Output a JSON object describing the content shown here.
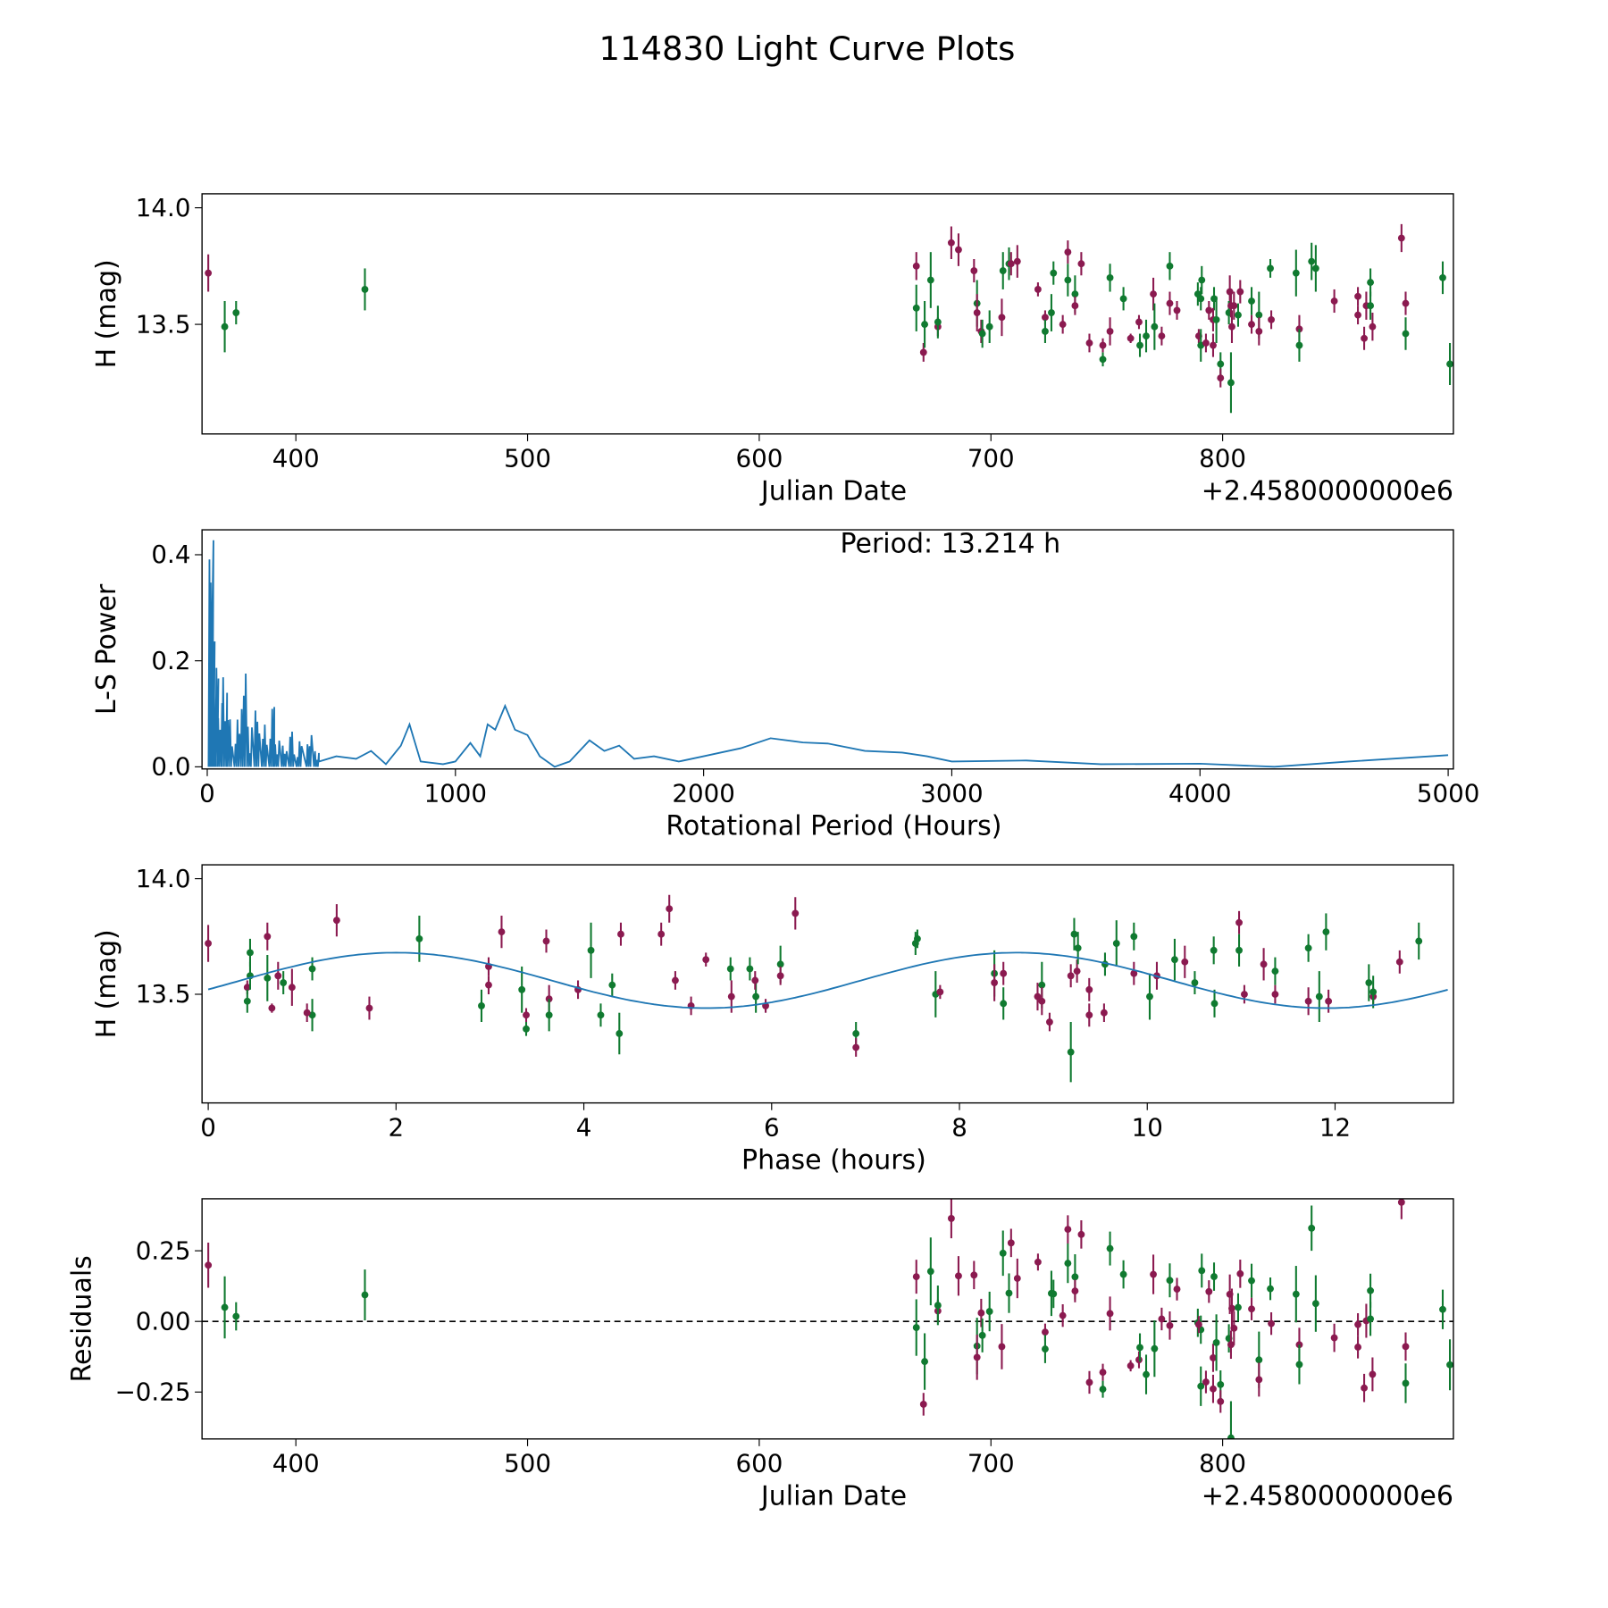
{
  "title": "114830 Light Curve Plots",
  "colors": {
    "band_a": "#8b1a50",
    "band_b": "#107a30",
    "line": "#1f77b4"
  },
  "chart_data": [
    {
      "type": "scatter",
      "name": "light-curve",
      "xlabel": "Julian Date",
      "ylabel": "H (mag)",
      "offset_label": "+2.4580000000e6",
      "xlim": [
        359.5,
        899.6
      ],
      "ylim": [
        13.03,
        14.06
      ],
      "xticks": [
        400,
        500,
        600,
        700,
        800
      ],
      "yticks": [
        13.5,
        14.0
      ],
      "xtick_labels": [
        "400",
        "500",
        "600",
        "700",
        "800"
      ],
      "ytick_labels": [
        "13.5",
        "14.0"
      ],
      "points_format": [
        "jd_offset",
        "H",
        "err",
        "band"
      ],
      "points": [
        [
          362.2,
          13.72,
          0.08,
          "a"
        ],
        [
          369.3,
          13.49,
          0.11,
          "b"
        ],
        [
          374.2,
          13.55,
          0.05,
          "b"
        ],
        [
          429.8,
          13.65,
          0.09,
          "b"
        ],
        [
          667.8,
          13.57,
          0.1,
          "b"
        ],
        [
          667.8,
          13.75,
          0.06,
          "a"
        ],
        [
          670.9,
          13.38,
          0.04,
          "a"
        ],
        [
          671.4,
          13.5,
          0.1,
          "b"
        ],
        [
          674.0,
          13.69,
          0.12,
          "b"
        ],
        [
          677.1,
          13.49,
          0.04,
          "a"
        ],
        [
          677.1,
          13.51,
          0.07,
          "b"
        ],
        [
          682.9,
          13.85,
          0.07,
          "a"
        ],
        [
          686.0,
          13.82,
          0.07,
          "a"
        ],
        [
          692.7,
          13.73,
          0.05,
          "a"
        ],
        [
          694.0,
          13.59,
          0.1,
          "b"
        ],
        [
          694.0,
          13.55,
          0.08,
          "a"
        ],
        [
          695.8,
          13.47,
          0.05,
          "a"
        ],
        [
          696.3,
          13.46,
          0.06,
          "b"
        ],
        [
          699.4,
          13.49,
          0.07,
          "b"
        ],
        [
          704.7,
          13.53,
          0.08,
          "a"
        ],
        [
          705.2,
          13.73,
          0.08,
          "b"
        ],
        [
          707.8,
          13.76,
          0.07,
          "b"
        ],
        [
          708.7,
          13.76,
          0.05,
          "a"
        ],
        [
          711.4,
          13.77,
          0.07,
          "a"
        ],
        [
          720.3,
          13.65,
          0.03,
          "a"
        ],
        [
          723.4,
          13.53,
          0.03,
          "a"
        ],
        [
          723.4,
          13.47,
          0.05,
          "b"
        ],
        [
          726.1,
          13.55,
          0.08,
          "b"
        ],
        [
          727.0,
          13.72,
          0.05,
          "b"
        ],
        [
          731.0,
          13.5,
          0.04,
          "a"
        ],
        [
          733.2,
          13.81,
          0.05,
          "a"
        ],
        [
          733.2,
          13.69,
          0.07,
          "b"
        ],
        [
          736.3,
          13.63,
          0.08,
          "b"
        ],
        [
          736.3,
          13.58,
          0.04,
          "a"
        ],
        [
          739.0,
          13.76,
          0.05,
          "a"
        ],
        [
          742.5,
          13.42,
          0.04,
          "a"
        ],
        [
          748.3,
          13.35,
          0.03,
          "b"
        ],
        [
          748.3,
          13.41,
          0.03,
          "a"
        ],
        [
          751.4,
          13.47,
          0.06,
          "a"
        ],
        [
          751.4,
          13.7,
          0.06,
          "b"
        ],
        [
          757.2,
          13.61,
          0.05,
          "b"
        ],
        [
          760.3,
          13.44,
          0.02,
          "a"
        ],
        [
          763.9,
          13.51,
          0.03,
          "a"
        ],
        [
          764.3,
          13.41,
          0.05,
          "b"
        ],
        [
          767.0,
          13.45,
          0.07,
          "b"
        ],
        [
          770.1,
          13.63,
          0.07,
          "a"
        ],
        [
          770.6,
          13.49,
          0.1,
          "b"
        ],
        [
          773.7,
          13.45,
          0.04,
          "a"
        ],
        [
          777.2,
          13.75,
          0.06,
          "b"
        ],
        [
          777.2,
          13.59,
          0.05,
          "a"
        ],
        [
          780.3,
          13.56,
          0.04,
          "a"
        ],
        [
          789.3,
          13.63,
          0.05,
          "b"
        ],
        [
          790.6,
          13.61,
          0.05,
          "b"
        ],
        [
          789.7,
          13.45,
          0.03,
          "a"
        ],
        [
          790.6,
          13.41,
          0.07,
          "b"
        ],
        [
          791.0,
          13.69,
          0.06,
          "b"
        ],
        [
          794.1,
          13.56,
          0.04,
          "a"
        ],
        [
          792.8,
          13.42,
          0.04,
          "a"
        ],
        [
          795.9,
          13.41,
          0.05,
          "a"
        ],
        [
          796.3,
          13.61,
          0.05,
          "b"
        ],
        [
          795.9,
          13.52,
          0.05,
          "a"
        ],
        [
          797.3,
          13.52,
          0.1,
          "b"
        ],
        [
          799.1,
          13.33,
          0.05,
          "b"
        ],
        [
          799.1,
          13.27,
          0.04,
          "a"
        ],
        [
          803.1,
          13.64,
          0.07,
          "a"
        ],
        [
          803.6,
          13.25,
          0.13,
          "b"
        ],
        [
          802.7,
          13.55,
          0.05,
          "b"
        ],
        [
          803.6,
          13.58,
          0.05,
          "a"
        ],
        [
          804.0,
          13.49,
          0.07,
          "a"
        ],
        [
          804.9,
          13.58,
          0.06,
          "a"
        ],
        [
          806.7,
          13.54,
          0.05,
          "b"
        ],
        [
          807.6,
          13.64,
          0.05,
          "a"
        ],
        [
          812.5,
          13.5,
          0.04,
          "a"
        ],
        [
          812.5,
          13.6,
          0.06,
          "b"
        ],
        [
          815.7,
          13.54,
          0.1,
          "b"
        ],
        [
          815.7,
          13.47,
          0.06,
          "a"
        ],
        [
          820.6,
          13.74,
          0.04,
          "b"
        ],
        [
          821.0,
          13.52,
          0.04,
          "a"
        ],
        [
          831.7,
          13.72,
          0.1,
          "b"
        ],
        [
          833.1,
          13.48,
          0.06,
          "a"
        ],
        [
          833.1,
          13.41,
          0.07,
          "b"
        ],
        [
          838.4,
          13.77,
          0.08,
          "b"
        ],
        [
          840.2,
          13.74,
          0.1,
          "b"
        ],
        [
          848.2,
          13.6,
          0.05,
          "a"
        ],
        [
          858.4,
          13.54,
          0.04,
          "a"
        ],
        [
          858.4,
          13.62,
          0.04,
          "a"
        ],
        [
          861.1,
          13.44,
          0.05,
          "a"
        ],
        [
          862.0,
          13.58,
          0.06,
          "a"
        ],
        [
          863.8,
          13.58,
          0.06,
          "b"
        ],
        [
          863.8,
          13.68,
          0.06,
          "b"
        ],
        [
          864.7,
          13.49,
          0.06,
          "a"
        ],
        [
          877.2,
          13.87,
          0.06,
          "a"
        ],
        [
          879.0,
          13.59,
          0.05,
          "a"
        ],
        [
          879.0,
          13.46,
          0.07,
          "b"
        ],
        [
          895.0,
          13.7,
          0.07,
          "b"
        ],
        [
          898.1,
          13.33,
          0.09,
          "b"
        ]
      ]
    },
    {
      "type": "line",
      "name": "periodogram",
      "xlabel": "Rotational Period (Hours)",
      "ylabel": "L-S Power",
      "annotation": "Period: 13.214 h",
      "xlim": [
        -21,
        5021
      ],
      "ylim": [
        -0.004,
        0.447
      ],
      "xticks": [
        0,
        1000,
        2000,
        3000,
        4000,
        5000
      ],
      "yticks": [
        0.0,
        0.2,
        0.4
      ],
      "xtick_labels": [
        "0",
        "1000",
        "2000",
        "3000",
        "4000",
        "5000"
      ],
      "ytick_labels": [
        "0.0",
        "0.2",
        "0.4"
      ],
      "spikes": [
        [
          5,
          0.44
        ],
        [
          10,
          0.35
        ],
        [
          15,
          0.2
        ],
        [
          25,
          0.2
        ],
        [
          40,
          0.12
        ],
        [
          60,
          0.17
        ],
        [
          80,
          0.1
        ],
        [
          110,
          0.09
        ],
        [
          135,
          0.18
        ],
        [
          160,
          0.08
        ],
        [
          190,
          0.11
        ],
        [
          220,
          0.08
        ],
        [
          250,
          0.125
        ],
        [
          270,
          0.05
        ],
        [
          300,
          0.04
        ],
        [
          330,
          0.07
        ],
        [
          360,
          0.05
        ],
        [
          400,
          0.06
        ],
        [
          430,
          0.03
        ]
      ],
      "smooth": [
        [
          450,
          0.01
        ],
        [
          520,
          0.02
        ],
        [
          600,
          0.015
        ],
        [
          660,
          0.03
        ],
        [
          720,
          0.005
        ],
        [
          780,
          0.04
        ],
        [
          815,
          0.08
        ],
        [
          860,
          0.01
        ],
        [
          950,
          0.005
        ],
        [
          1000,
          0.01
        ],
        [
          1060,
          0.045
        ],
        [
          1100,
          0.02
        ],
        [
          1130,
          0.08
        ],
        [
          1160,
          0.07
        ],
        [
          1200,
          0.115
        ],
        [
          1240,
          0.07
        ],
        [
          1290,
          0.06
        ],
        [
          1340,
          0.02
        ],
        [
          1400,
          0.0
        ],
        [
          1460,
          0.01
        ],
        [
          1540,
          0.05
        ],
        [
          1600,
          0.03
        ],
        [
          1660,
          0.04
        ],
        [
          1720,
          0.015
        ],
        [
          1800,
          0.02
        ],
        [
          1900,
          0.01
        ],
        [
          2000,
          0.02
        ],
        [
          2150,
          0.035
        ],
        [
          2270,
          0.054
        ],
        [
          2400,
          0.046
        ],
        [
          2500,
          0.044
        ],
        [
          2650,
          0.03
        ],
        [
          2800,
          0.027
        ],
        [
          2900,
          0.02
        ],
        [
          3000,
          0.01
        ],
        [
          3300,
          0.012
        ],
        [
          3600,
          0.005
        ],
        [
          4000,
          0.006
        ],
        [
          4300,
          0.0
        ],
        [
          4600,
          0.01
        ],
        [
          5000,
          0.022
        ]
      ]
    },
    {
      "type": "scatter",
      "name": "phased-light-curve",
      "xlabel": "Phase (hours)",
      "ylabel": "H (mag)",
      "period_hours": 13.214,
      "model": {
        "mean": 13.56,
        "amplitude": 0.12,
        "peak_phase": 2.0,
        "harmonic": 2
      },
      "xlim": [
        -0.066,
        13.26
      ],
      "ylim": [
        13.03,
        14.06
      ],
      "xticks": [
        0,
        2,
        4,
        6,
        8,
        10,
        12
      ],
      "yticks": [
        13.5,
        14.0
      ],
      "xtick_labels": [
        "0",
        "2",
        "4",
        "6",
        "8",
        "10",
        "12"
      ],
      "ytick_labels": [
        "13.5",
        "14.0"
      ]
    },
    {
      "type": "scatter",
      "name": "residuals",
      "xlabel": "Julian Date",
      "ylabel": "Residuals",
      "offset_label": "+2.4580000000e6",
      "xlim": [
        359.5,
        899.6
      ],
      "ylim": [
        -0.416,
        0.434
      ],
      "xticks": [
        400,
        500,
        600,
        700,
        800
      ],
      "yticks": [
        -0.25,
        0.0,
        0.25
      ],
      "xtick_labels": [
        "400",
        "500",
        "600",
        "700",
        "800"
      ],
      "ytick_labels": [
        "−0.25",
        "0.00",
        "0.25"
      ]
    }
  ]
}
